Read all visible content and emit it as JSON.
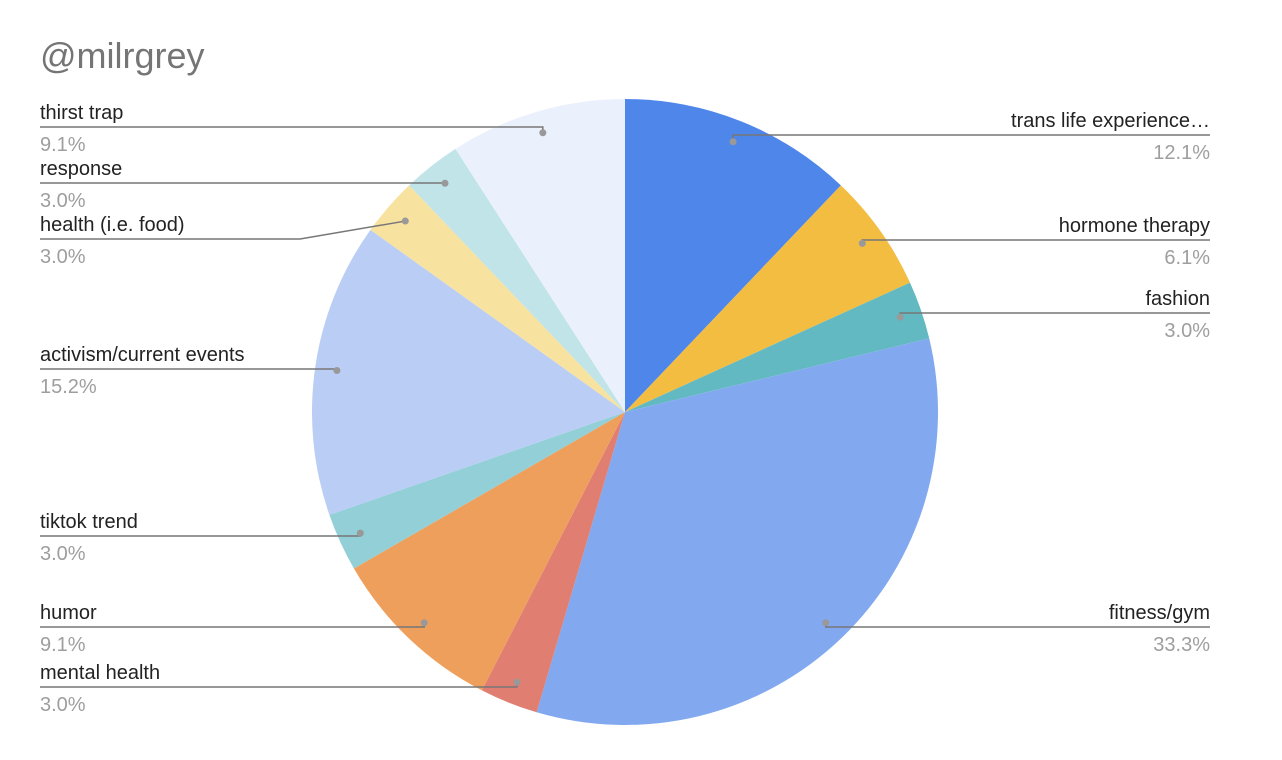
{
  "chart_data": {
    "type": "pie",
    "title": "@milrgrey",
    "categories": [
      "trans life experience…",
      "hormone therapy",
      "fashion",
      "fitness/gym",
      "mental health",
      "humor",
      "tiktok trend",
      "activism/current events",
      "health (i.e. food)",
      "response",
      "thirst trap"
    ],
    "values": [
      12.1,
      6.1,
      3.0,
      33.3,
      3.0,
      9.1,
      3.0,
      15.2,
      3.0,
      3.0,
      9.1
    ],
    "value_labels": [
      "12.1%",
      "6.1%",
      "3.0%",
      "33.3%",
      "3.0%",
      "9.1%",
      "3.0%",
      "15.2%",
      "3.0%",
      "3.0%",
      "9.1%"
    ],
    "colors": [
      "#4f86ea",
      "#f3bd42",
      "#62b9c1",
      "#82a9f0",
      "#e07e72",
      "#ef9f5c",
      "#92cfd6",
      "#bacdf5",
      "#f8e2a0",
      "#c0e4e7",
      "#ebf1fc"
    ]
  }
}
